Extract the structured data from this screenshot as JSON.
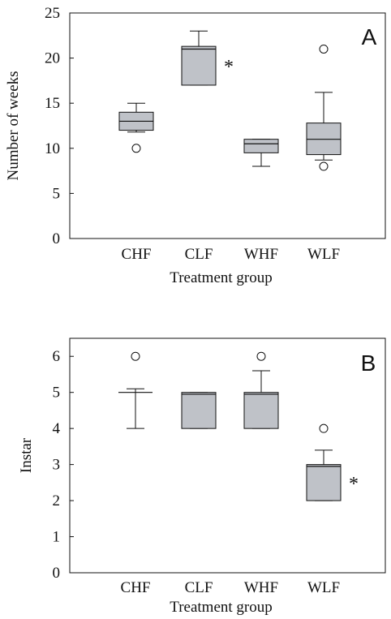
{
  "chart_data": [
    {
      "type": "box",
      "panel_label": "A",
      "xlabel": "Treatment group",
      "ylabel": "Number of weeks",
      "ylim": [
        0,
        25
      ],
      "yticks": [
        "0",
        "5",
        "10",
        "15",
        "20",
        "25"
      ],
      "categories": [
        "CHF",
        "CLF",
        "WHF",
        "WLF"
      ],
      "boxes": [
        {
          "whisker_low": 11.8,
          "q1": 12.0,
          "median": 13.0,
          "q3": 14.0,
          "whisker_high": 15.0,
          "outliers": [
            10.0
          ],
          "significant": false
        },
        {
          "whisker_low": 17.0,
          "q1": 17.0,
          "median": 21.0,
          "q3": 21.3,
          "whisker_high": 23.0,
          "outliers": [],
          "significant": true
        },
        {
          "whisker_low": 8.0,
          "q1": 9.5,
          "median": 10.5,
          "q3": 11.0,
          "whisker_high": 11.0,
          "outliers": [],
          "significant": false
        },
        {
          "whisker_low": 8.7,
          "q1": 9.3,
          "median": 11.0,
          "q3": 12.8,
          "whisker_high": 16.2,
          "outliers": [
            21.0,
            8.0
          ],
          "significant": false
        }
      ],
      "significance_marker": "*"
    },
    {
      "type": "box",
      "panel_label": "B",
      "xlabel": "Treatment group",
      "ylabel": "Instar",
      "ylim": [
        0,
        6.5
      ],
      "yticks": [
        "0",
        "1",
        "2",
        "3",
        "4",
        "5",
        "6"
      ],
      "categories": [
        "CHF",
        "CLF",
        "WHF",
        "WLF"
      ],
      "boxes": [
        {
          "whisker_low": 4.0,
          "q1": 5.0,
          "median": 5.0,
          "q3": 5.0,
          "whisker_high": 5.1,
          "outliers": [
            6.0
          ],
          "significant": false
        },
        {
          "whisker_low": 4.0,
          "q1": 4.0,
          "median": 4.95,
          "q3": 5.0,
          "whisker_high": 5.0,
          "outliers": [],
          "significant": false
        },
        {
          "whisker_low": 4.0,
          "q1": 4.0,
          "median": 4.95,
          "q3": 5.0,
          "whisker_high": 5.6,
          "outliers": [
            6.0
          ],
          "significant": false
        },
        {
          "whisker_low": 2.0,
          "q1": 2.0,
          "median": 2.95,
          "q3": 3.0,
          "whisker_high": 3.4,
          "outliers": [
            4.0
          ],
          "significant": true
        }
      ],
      "significance_marker": "*"
    }
  ],
  "colors": {
    "box_fill": "#bfc2c8",
    "stroke": "#111111"
  }
}
